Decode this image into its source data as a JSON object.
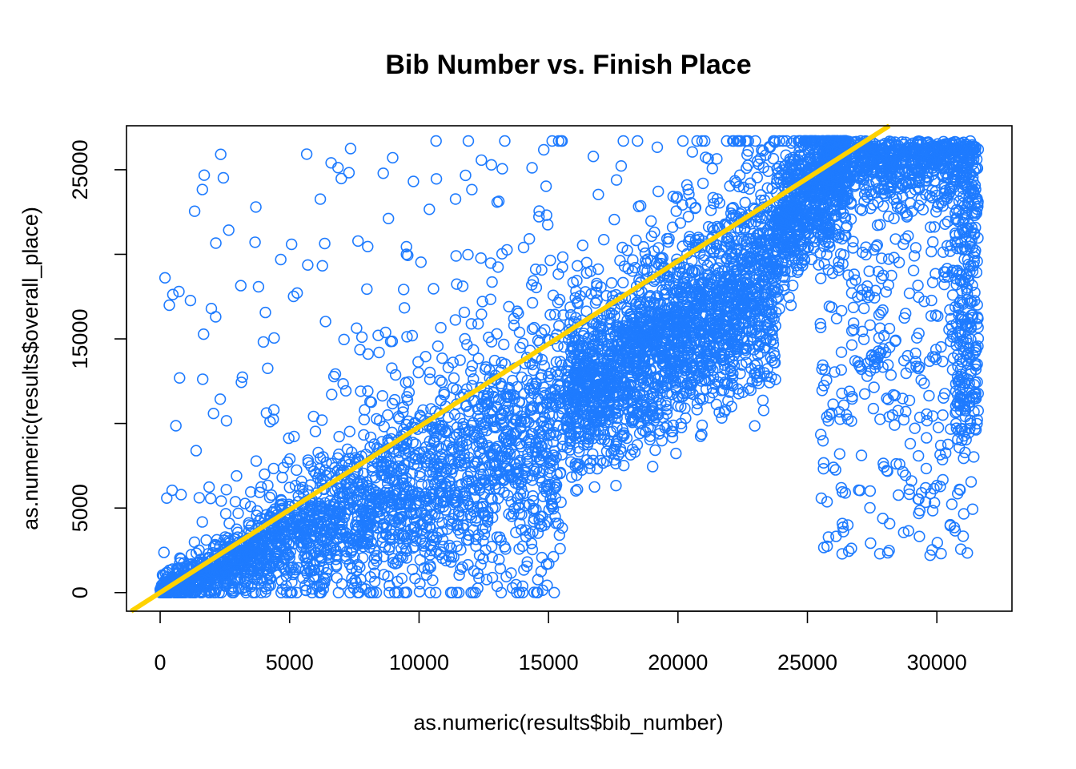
{
  "chart_data": {
    "type": "scatter",
    "title": "Bib Number vs. Finish Place",
    "xlabel": "as.numeric(results$bib_number)",
    "ylabel": "as.numeric(results$overall_place)",
    "xlim": [
      -1300,
      32900
    ],
    "ylim": [
      -1100,
      27600
    ],
    "x_ticks": [
      0,
      5000,
      10000,
      15000,
      20000,
      25000,
      30000
    ],
    "y_ticks": [
      0,
      5000,
      15000,
      25000
    ],
    "y_tick_marks": [
      0,
      5000,
      10000,
      15000,
      20000,
      25000
    ],
    "grid": false,
    "legend": "none",
    "point_color": "#1E7BFF",
    "fit_line": {
      "color": "#FFD200",
      "intercept": 0,
      "slope": 0.98
    },
    "series": [
      {
        "marker": "open-circle",
        "note_points": "approximate cloud of ~26,000 finishers; representative sample reproduced",
        "points": []
      }
    ]
  }
}
